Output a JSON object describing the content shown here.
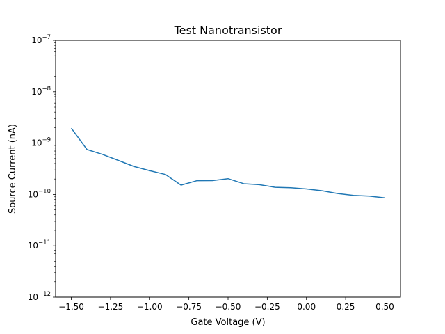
{
  "chart_data": {
    "type": "line",
    "title": "Test Nanotransistor",
    "xlabel": "Gate Voltage (V)",
    "ylabel": "Source Current (nA)",
    "yscale": "log",
    "xlim": [
      -1.6,
      0.6
    ],
    "ylim": [
      1e-12,
      1e-07
    ],
    "grid": false,
    "line_color": "#1f77b4",
    "x_ticks": [
      {
        "value": -1.5,
        "label": "−1.50"
      },
      {
        "value": -1.25,
        "label": "−1.25"
      },
      {
        "value": -1.0,
        "label": "−1.00"
      },
      {
        "value": -0.75,
        "label": "−0.75"
      },
      {
        "value": -0.5,
        "label": "−0.50"
      },
      {
        "value": -0.25,
        "label": "−0.25"
      },
      {
        "value": 0.0,
        "label": "0.00"
      },
      {
        "value": 0.25,
        "label": "0.25"
      },
      {
        "value": 0.5,
        "label": "0.50"
      }
    ],
    "y_ticks": [
      {
        "value": 1e-12,
        "base": "10",
        "exp": "−12"
      },
      {
        "value": 1e-11,
        "base": "10",
        "exp": "−11"
      },
      {
        "value": 1e-10,
        "base": "10",
        "exp": "−10"
      },
      {
        "value": 1e-09,
        "base": "10",
        "exp": "−9"
      },
      {
        "value": 1e-08,
        "base": "10",
        "exp": "−8"
      },
      {
        "value": 1e-07,
        "base": "10",
        "exp": "−7"
      }
    ],
    "series": [
      {
        "x": [
          -1.5,
          -1.4,
          -1.3,
          -1.2,
          -1.1,
          -1.0,
          -0.9,
          -0.8,
          -0.7,
          -0.6,
          -0.5,
          -0.4,
          -0.3,
          -0.2,
          -0.1,
          0.0,
          0.1,
          0.2,
          0.3,
          0.4,
          0.5
        ],
        "y": [
          1.95e-09,
          7.5e-10,
          6e-10,
          4.6e-10,
          3.5e-10,
          2.9e-10,
          2.45e-10,
          1.52e-10,
          1.85e-10,
          1.86e-10,
          2.03e-10,
          1.62e-10,
          1.55e-10,
          1.38e-10,
          1.35e-10,
          1.28e-10,
          1.18e-10,
          1.04e-10,
          9.6e-11,
          9.3e-11,
          8.6e-11
        ]
      }
    ]
  }
}
